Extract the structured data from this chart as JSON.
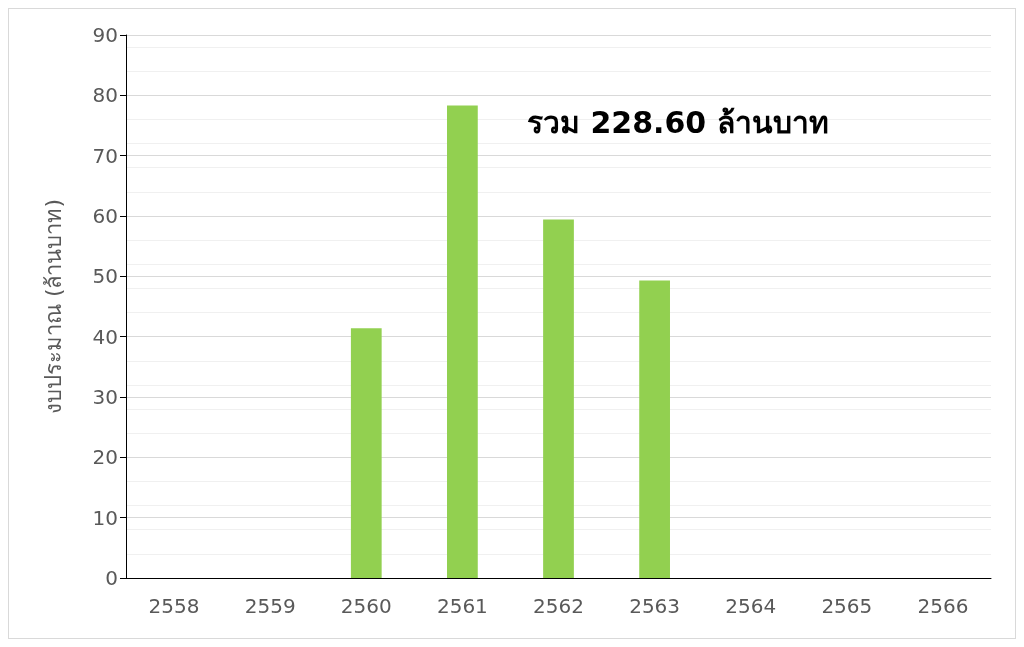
{
  "chart_data": {
    "type": "bar",
    "ylabel": "งบประมาณ (ล้านบาท)",
    "categories": [
      "2558",
      "2559",
      "2560",
      "2561",
      "2562",
      "2563",
      "2564",
      "2565",
      "2566"
    ],
    "values": [
      null,
      null,
      41.4,
      78.3,
      59.4,
      49.3,
      null,
      null,
      null
    ],
    "color": "#92d050",
    "ylim": [
      0,
      90
    ],
    "yticks": [
      0,
      10,
      20,
      30,
      40,
      50,
      60,
      70,
      80,
      90
    ],
    "grid": "y",
    "annotations": [
      "รวม 228.60 ล้านบาท"
    ]
  }
}
